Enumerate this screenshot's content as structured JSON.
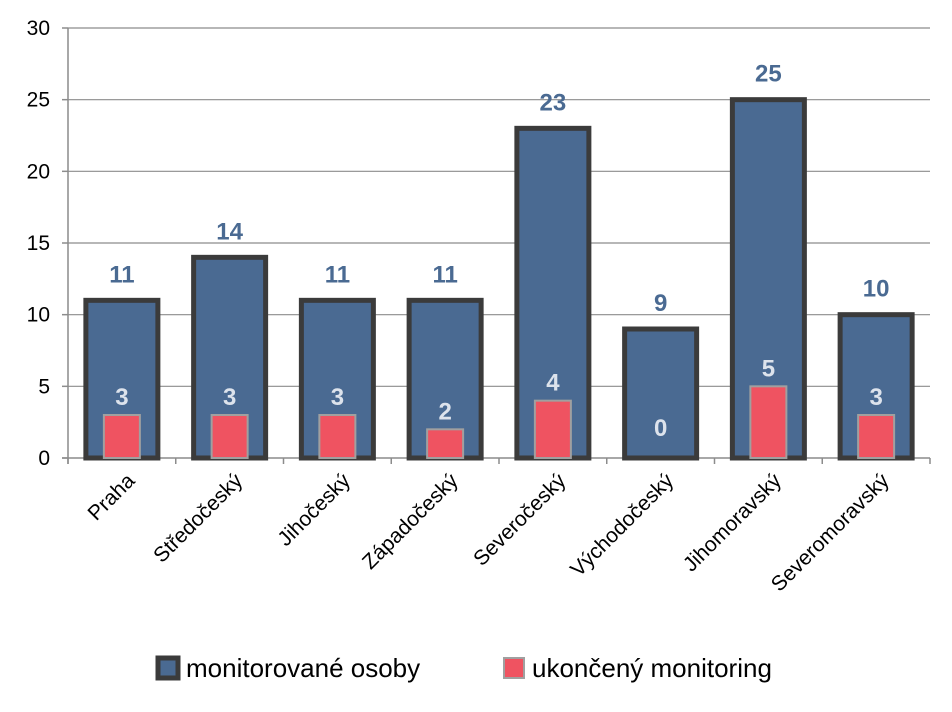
{
  "chart_data": {
    "type": "bar",
    "categories": [
      "Praha",
      "Středočeský",
      "Jihočeský",
      "Západočeský",
      "Severočeský",
      "Východočeský",
      "Jihomoravský",
      "Severomoravský"
    ],
    "series": [
      {
        "name": "monitorované osoby",
        "values": [
          11,
          14,
          11,
          11,
          23,
          9,
          25,
          10
        ],
        "color": "#4a6a92",
        "border": "#3b3b3b"
      },
      {
        "name": "ukončený monitoring",
        "values": [
          3,
          3,
          3,
          2,
          4,
          0,
          5,
          3
        ],
        "color": "#ef5361",
        "border": "#a0a0a0"
      }
    ],
    "ylim": [
      0,
      30
    ],
    "yticks": [
      0,
      5,
      10,
      15,
      20,
      25,
      30
    ],
    "grid": true,
    "legend": "bottom",
    "overlap": true
  }
}
